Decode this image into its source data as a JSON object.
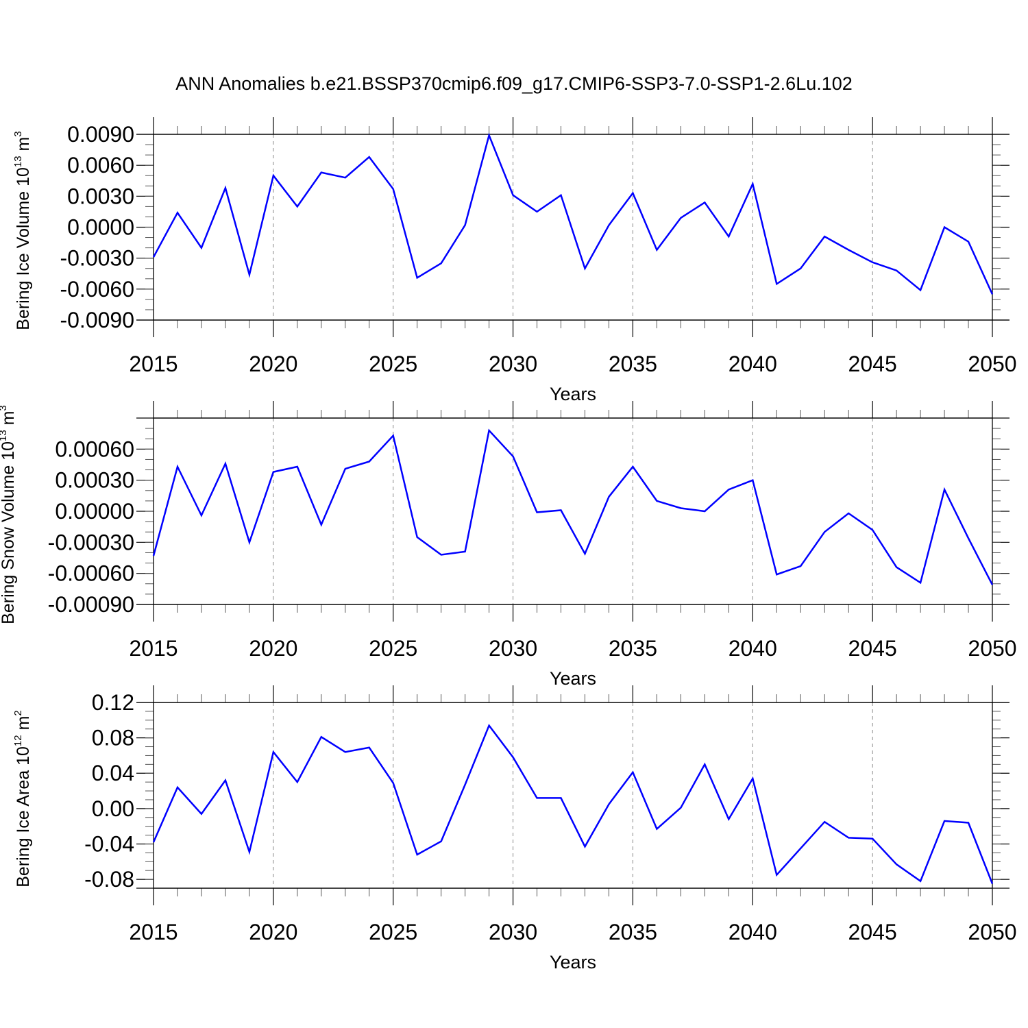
{
  "title": "ANN Anomalies b.e21.BSSP370cmip6.f09_g17.CMIP6-SSP3-7.0-SSP1-2.6Lu.102",
  "line_color": "#0000ff",
  "chart_data": [
    {
      "type": "line",
      "ylabel": {
        "text": "Bering Ice Volume 10",
        "exp": "13",
        "unit": " m",
        "unit_exp": "3"
      },
      "xlabel": "Years",
      "x": [
        2015,
        2016,
        2017,
        2018,
        2019,
        2020,
        2021,
        2022,
        2023,
        2024,
        2025,
        2026,
        2027,
        2028,
        2029,
        2030,
        2031,
        2032,
        2033,
        2034,
        2035,
        2036,
        2037,
        2038,
        2039,
        2040,
        2041,
        2042,
        2043,
        2044,
        2045,
        2046,
        2047,
        2048,
        2049,
        2050
      ],
      "series": [
        {
          "values": [
            -0.0029,
            0.0014,
            -0.002,
            0.0038,
            -0.0046,
            0.005,
            0.002,
            0.0053,
            0.0048,
            0.0068,
            0.0037,
            -0.0049,
            -0.0035,
            0.0002,
            0.0089,
            0.0031,
            0.0015,
            0.0031,
            -0.004,
            0.0002,
            0.0033,
            -0.0022,
            0.0009,
            0.0024,
            -0.0009,
            0.0042,
            -0.0055,
            -0.004,
            -0.0009,
            -0.0022,
            -0.0034,
            -0.0042,
            -0.0061,
            0.0,
            -0.0014,
            -0.0065
          ]
        }
      ],
      "ylim": [
        -0.009,
        0.009
      ],
      "yticks": [
        -0.009,
        -0.006,
        -0.003,
        0.0,
        0.003,
        0.006,
        0.009
      ],
      "yticklabels": [
        "-0.0090",
        "-0.0060",
        "-0.0030",
        "0.0000",
        "0.0030",
        "0.0060",
        "0.0090"
      ],
      "xticks": [
        2015,
        2020,
        2025,
        2030,
        2035,
        2040,
        2045,
        2050
      ],
      "xticklabels": [
        "2015",
        "2020",
        "2025",
        "2030",
        "2035",
        "2040",
        "2045",
        "2050"
      ],
      "yminor_step": 0.001,
      "xgrid": [
        2020,
        2025,
        2030,
        2035,
        2040,
        2045
      ],
      "ref_line": 0
    },
    {
      "type": "line",
      "ylabel": {
        "text": "Bering Snow Volume 10",
        "exp": "13",
        "unit": " m",
        "unit_exp": "3"
      },
      "xlabel": "Years",
      "x": [
        2015,
        2016,
        2017,
        2018,
        2019,
        2020,
        2021,
        2022,
        2023,
        2024,
        2025,
        2026,
        2027,
        2028,
        2029,
        2030,
        2031,
        2032,
        2033,
        2034,
        2035,
        2036,
        2037,
        2038,
        2039,
        2040,
        2041,
        2042,
        2043,
        2044,
        2045,
        2046,
        2047,
        2048,
        2049,
        2050
      ],
      "series": [
        {
          "values": [
            -0.00043,
            0.00043,
            -4e-05,
            0.00046,
            -0.0003,
            0.00038,
            0.00043,
            -0.00013,
            0.00041,
            0.00048,
            0.00073,
            -0.00025,
            -0.00042,
            -0.00039,
            0.00078,
            0.00053,
            -1e-05,
            1e-05,
            -0.00041,
            0.00014,
            0.00043,
            0.0001,
            3e-05,
            0.0,
            0.00021,
            0.0003,
            -0.00061,
            -0.00053,
            -0.0002,
            -2e-05,
            -0.00018,
            -0.00054,
            -0.00069,
            0.00021,
            -0.00026,
            -0.00071
          ]
        }
      ],
      "ylim": [
        -0.0009,
        0.0009
      ],
      "yticks": [
        -0.0009,
        -0.0006,
        -0.0003,
        0.0,
        0.0003,
        0.0006
      ],
      "yticklabels": [
        "-0.00090",
        "-0.00060",
        "-0.00030",
        "0.00000",
        "0.00030",
        "0.00060"
      ],
      "xticks": [
        2015,
        2020,
        2025,
        2030,
        2035,
        2040,
        2045,
        2050
      ],
      "xticklabels": [
        "2015",
        "2020",
        "2025",
        "2030",
        "2035",
        "2040",
        "2045",
        "2050"
      ],
      "yminor_step": 0.0001,
      "xgrid": [
        2020,
        2025,
        2030,
        2035,
        2040,
        2045
      ],
      "ref_line": 0
    },
    {
      "type": "line",
      "ylabel": {
        "text": "Bering Ice Area 10",
        "exp": "12",
        "unit": " m",
        "unit_exp": "2"
      },
      "xlabel": "Years",
      "x": [
        2015,
        2016,
        2017,
        2018,
        2019,
        2020,
        2021,
        2022,
        2023,
        2024,
        2025,
        2026,
        2027,
        2028,
        2029,
        2030,
        2031,
        2032,
        2033,
        2034,
        2035,
        2036,
        2037,
        2038,
        2039,
        2040,
        2041,
        2042,
        2043,
        2044,
        2045,
        2046,
        2047,
        2048,
        2049,
        2050
      ],
      "series": [
        {
          "values": [
            -0.038,
            0.024,
            -0.006,
            0.032,
            -0.049,
            0.064,
            0.03,
            0.081,
            0.064,
            0.069,
            0.029,
            -0.052,
            -0.037,
            0.027,
            0.094,
            0.058,
            0.012,
            0.012,
            -0.043,
            0.005,
            0.041,
            -0.023,
            0.001,
            0.05,
            -0.012,
            0.034,
            -0.075,
            -0.045,
            -0.015,
            -0.033,
            -0.034,
            -0.063,
            -0.082,
            -0.014,
            -0.016,
            -0.085
          ]
        }
      ],
      "ylim": [
        -0.09,
        0.12
      ],
      "yticks": [
        -0.08,
        -0.04,
        0.0,
        0.04,
        0.08,
        0.12
      ],
      "yticklabels": [
        "-0.08",
        "-0.04",
        "0.00",
        "0.04",
        "0.08",
        "0.12"
      ],
      "xticks": [
        2015,
        2020,
        2025,
        2030,
        2035,
        2040,
        2045,
        2050
      ],
      "xticklabels": [
        "2015",
        "2020",
        "2025",
        "2030",
        "2035",
        "2040",
        "2045",
        "2050"
      ],
      "yminor_step": 0.01,
      "xgrid": [
        2020,
        2025,
        2030,
        2035,
        2040,
        2045
      ],
      "ref_line": 0
    }
  ]
}
